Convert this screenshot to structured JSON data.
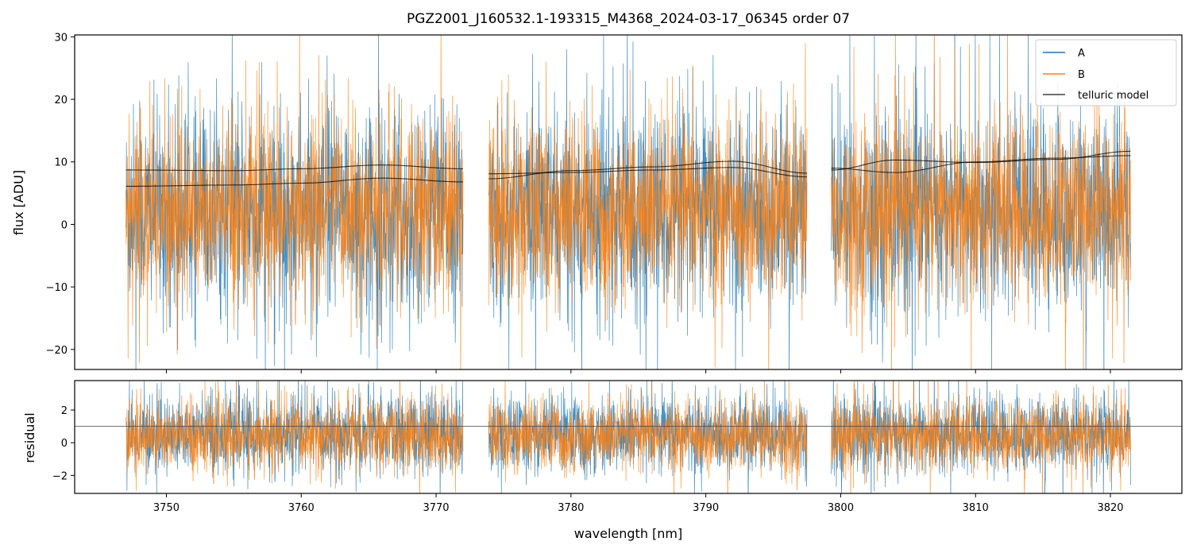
{
  "title": "PGZ2001_J160532.1-193315_M4368_2024-03-17_06345  order 07",
  "colors": {
    "A": "#1f77b4",
    "B": "#ff7f0e",
    "telluric": "#000000",
    "refline": "#444444"
  },
  "chart_data": [
    {
      "type": "line",
      "panel": "flux",
      "ylabel": "flux [ADU]",
      "xlim": [
        3743.2,
        3825.3
      ],
      "ylim": [
        -23.2,
        30.3
      ],
      "yticks": [
        -20,
        -10,
        0,
        10,
        20,
        30
      ],
      "segments": [
        {
          "x_start": 3747.0,
          "x_end": 3772.0
        },
        {
          "x_start": 3773.9,
          "x_end": 3797.5
        },
        {
          "x_start": 3799.3,
          "x_end": 3821.5
        }
      ],
      "series": [
        {
          "name": "A",
          "color": "#1f77b4",
          "typical_center": 2.0,
          "typical_scatter": 8.0,
          "note_values": "dense noisy spectrum"
        },
        {
          "name": "B",
          "color": "#ff7f0e",
          "typical_center": 2.0,
          "typical_scatter": 7.5,
          "note_values": "dense noisy spectrum"
        },
        {
          "name": "telluric model",
          "color": "#000000",
          "curves": [
            {
              "x": [
                3747.0,
                3755.0,
                3760.0,
                3766.0,
                3772.0
              ],
              "y": [
                8.7,
                8.6,
                8.9,
                9.5,
                8.9
              ]
            },
            {
              "x": [
                3747.0,
                3755.0,
                3760.0,
                3766.0,
                3772.0
              ],
              "y": [
                6.1,
                6.3,
                6.6,
                7.4,
                6.8
              ]
            },
            {
              "x": [
                3773.9,
                3780.0,
                3786.0,
                3792.0,
                3797.5
              ],
              "y": [
                7.3,
                8.6,
                9.2,
                10.1,
                8.2
              ]
            },
            {
              "x": [
                3773.9,
                3780.0,
                3786.0,
                3792.0,
                3797.5
              ],
              "y": [
                8.1,
                8.3,
                8.7,
                9.1,
                7.6
              ]
            },
            {
              "x": [
                3799.3,
                3804.0,
                3810.0,
                3816.0,
                3821.5
              ],
              "y": [
                8.7,
                10.3,
                9.9,
                10.4,
                11.7
              ]
            },
            {
              "x": [
                3799.3,
                3804.0,
                3810.0,
                3816.0,
                3821.5
              ],
              "y": [
                9.0,
                8.3,
                10.0,
                10.6,
                11.0
              ]
            }
          ]
        }
      ],
      "legend": {
        "placement": "top-right",
        "entries": [
          "A",
          "B",
          "telluric model"
        ]
      },
      "grid": false
    },
    {
      "type": "line",
      "panel": "residual",
      "xlabel": "wavelength [nm]",
      "ylabel": "residual",
      "xlim": [
        3743.2,
        3825.3
      ],
      "ylim": [
        -3.1,
        3.8
      ],
      "yticks": [
        -2,
        0,
        2
      ],
      "xticks": [
        3750,
        3760,
        3770,
        3780,
        3790,
        3800,
        3810,
        3820
      ],
      "reference_line_y": 1.0,
      "series": [
        {
          "name": "A",
          "color": "#1f77b4",
          "typical_center": 0.5,
          "typical_scatter": 1.2
        },
        {
          "name": "B",
          "color": "#ff7f0e",
          "typical_center": 0.4,
          "typical_scatter": 1.1
        }
      ],
      "grid": false
    }
  ]
}
